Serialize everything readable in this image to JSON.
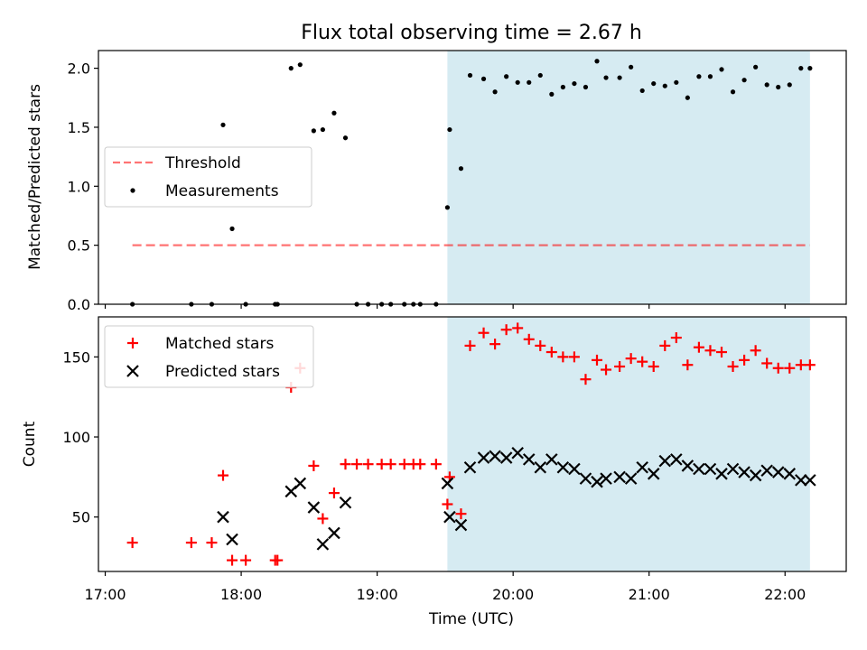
{
  "title": "Flux total observing time = 2.67 h",
  "colors": {
    "highlight": "#add8e6",
    "threshold": "#ff0000",
    "measurement": "#000000",
    "matched": "#ff0000",
    "predicted": "#000000"
  },
  "chart_data": [
    {
      "type": "scatter",
      "ylabel": "Matched/Predicted stars",
      "ylim": [
        0,
        2.15
      ],
      "xlim": [
        "16:57",
        "22:27"
      ],
      "yticks": [
        "0.0",
        "0.5",
        "1.0",
        "1.5",
        "2.0"
      ],
      "legend_position": "center-left",
      "highlight_span": {
        "x_start": "19:31",
        "x_end": "22:11"
      },
      "threshold": {
        "name": "Threshold",
        "y": 0.5,
        "x_start": "17:12",
        "x_end": "22:11"
      },
      "series": [
        {
          "name": "Measurements",
          "x": [
            "17:12",
            "17:38",
            "17:47",
            "17:52",
            "17:56",
            "18:02",
            "18:15",
            "18:16",
            "18:22",
            "18:26",
            "18:32",
            "18:36",
            "18:41",
            "18:46",
            "18:51",
            "18:56",
            "19:02",
            "19:06",
            "19:12",
            "19:16",
            "19:19",
            "19:26",
            "19:31",
            "19:32",
            "19:37",
            "19:41",
            "19:47",
            "19:52",
            "19:57",
            "20:02",
            "20:07",
            "20:12",
            "20:17",
            "20:22",
            "20:27",
            "20:32",
            "20:37",
            "20:41",
            "20:47",
            "20:52",
            "20:57",
            "21:02",
            "21:07",
            "21:12",
            "21:17",
            "21:22",
            "21:27",
            "21:32",
            "21:37",
            "21:42",
            "21:47",
            "21:52",
            "21:57",
            "22:02",
            "22:07",
            "22:11"
          ],
          "y": [
            0.0,
            0.0,
            0.0,
            1.52,
            0.64,
            0.0,
            0.0,
            0.0,
            2.0,
            2.03,
            1.47,
            1.48,
            1.62,
            1.41,
            0.0,
            0.0,
            0.0,
            0.0,
            0.0,
            0.0,
            0.0,
            0.0,
            0.82,
            1.48,
            1.15,
            1.94,
            1.91,
            1.8,
            1.93,
            1.88,
            1.88,
            1.94,
            1.78,
            1.84,
            1.87,
            1.84,
            2.06,
            1.92,
            1.92,
            2.01,
            1.81,
            1.87,
            1.85,
            1.88,
            1.75,
            1.93,
            1.93,
            1.99,
            1.8,
            1.9,
            2.01,
            1.86,
            1.84,
            1.86,
            2.0,
            2.0
          ]
        }
      ]
    },
    {
      "type": "scatter",
      "xlabel": "Time (UTC)",
      "ylabel": "Count",
      "ylim": [
        16,
        175
      ],
      "xlim": [
        "16:57",
        "22:27"
      ],
      "xticks": [
        "17:00",
        "18:00",
        "19:00",
        "20:00",
        "21:00",
        "22:00"
      ],
      "yticks": [
        "50",
        "100",
        "150"
      ],
      "legend_position": "upper-left",
      "highlight_span": {
        "x_start": "19:31",
        "x_end": "22:11"
      },
      "series": [
        {
          "name": "Matched stars",
          "marker": "plus",
          "x": [
            "17:12",
            "17:38",
            "17:47",
            "17:52",
            "17:56",
            "18:02",
            "18:15",
            "18:16",
            "18:22",
            "18:26",
            "18:32",
            "18:36",
            "18:41",
            "18:46",
            "18:51",
            "18:56",
            "19:02",
            "19:06",
            "19:12",
            "19:16",
            "19:19",
            "19:26",
            "19:31",
            "19:32",
            "19:37",
            "19:41",
            "19:47",
            "19:52",
            "19:57",
            "20:02",
            "20:07",
            "20:12",
            "20:17",
            "20:22",
            "20:27",
            "20:32",
            "20:37",
            "20:41",
            "20:47",
            "20:52",
            "20:57",
            "21:02",
            "21:07",
            "21:12",
            "21:17",
            "21:22",
            "21:27",
            "21:32",
            "21:37",
            "21:42",
            "21:47",
            "21:52",
            "21:57",
            "22:02",
            "22:07",
            "22:11"
          ],
          "y": [
            34,
            34,
            34,
            76,
            23,
            23,
            23,
            23,
            131,
            143,
            82,
            49,
            65,
            83,
            83,
            83,
            83,
            83,
            83,
            83,
            83,
            83,
            58,
            75,
            52,
            157,
            165,
            158,
            167,
            168,
            161,
            157,
            153,
            150,
            150,
            136,
            148,
            142,
            144,
            149,
            147,
            144,
            157,
            162,
            145,
            156,
            154,
            153,
            144,
            148,
            154,
            146,
            143,
            143,
            145,
            145
          ]
        },
        {
          "name": "Predicted stars",
          "marker": "x",
          "x": [
            "17:52",
            "17:56",
            "18:22",
            "18:26",
            "18:32",
            "18:36",
            "18:41",
            "18:46",
            "19:31",
            "19:32",
            "19:37",
            "19:41",
            "19:47",
            "19:52",
            "19:57",
            "20:02",
            "20:07",
            "20:12",
            "20:17",
            "20:22",
            "20:27",
            "20:32",
            "20:37",
            "20:41",
            "20:47",
            "20:52",
            "20:57",
            "21:02",
            "21:07",
            "21:12",
            "21:17",
            "21:22",
            "21:27",
            "21:32",
            "21:37",
            "21:42",
            "21:47",
            "21:52",
            "21:57",
            "22:02",
            "22:07",
            "22:11"
          ],
          "y": [
            50,
            36,
            66,
            71,
            56,
            33,
            40,
            59,
            71,
            50,
            45,
            81,
            87,
            88,
            87,
            90,
            86,
            81,
            86,
            81,
            80,
            74,
            72,
            74,
            75,
            74,
            81,
            77,
            85,
            86,
            82,
            80,
            80,
            77,
            80,
            78,
            76,
            79,
            78,
            77,
            73,
            73
          ]
        }
      ]
    }
  ]
}
